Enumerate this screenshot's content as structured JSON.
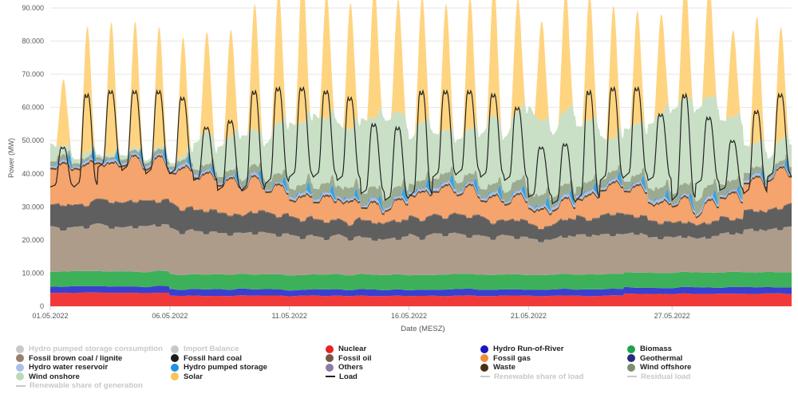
{
  "chart_data": {
    "type": "area",
    "title": "",
    "xlabel": "Date (MESZ)",
    "ylabel": "Power (MW)",
    "ylim": [
      0,
      90000
    ],
    "y_ticks": [
      "0",
      "10.000",
      "20.000",
      "30.000",
      "40.000",
      "50.000",
      "60.000",
      "70.000",
      "80.000",
      "90.000"
    ],
    "x_ticks": [
      "01.05.2022",
      "06.05.2022",
      "11.05.2022",
      "16.05.2022",
      "21.05.2022",
      "27.05.2022"
    ],
    "x_range_days": [
      1,
      32
    ],
    "stack_series": [
      {
        "name": "Nuclear",
        "color": "#f03a3a",
        "approx_range_MW": [
          2800,
          4000
        ]
      },
      {
        "name": "Hydro Run-of-River",
        "color": "#3b3fd0",
        "approx_range_MW": [
          1500,
          2200
        ]
      },
      {
        "name": "Biomass",
        "color": "#3cb15a",
        "approx_range_MW": [
          4400,
          4600
        ]
      },
      {
        "name": "Fossil brown coal / lignite",
        "color": "#ae9c8b",
        "approx_range_MW": [
          9000,
          14000
        ]
      },
      {
        "name": "Fossil hard coal",
        "color": "#5f5f5f",
        "approx_range_MW": [
          3000,
          7000
        ]
      },
      {
        "name": "Fossil oil",
        "color": "#8a6a5a",
        "approx_range_MW": [
          200,
          300
        ]
      },
      {
        "name": "Fossil gas",
        "color": "#f4a46c",
        "approx_range_MW": [
          2000,
          14000
        ]
      },
      {
        "name": "Waste",
        "color": "#6a4a2a",
        "approx_range_MW": [
          500,
          600
        ]
      },
      {
        "name": "Hydro water reservoir",
        "color": "#a9c1e8",
        "approx_range_MW": [
          200,
          1000
        ]
      },
      {
        "name": "Hydro pumped storage",
        "color": "#3aa2e0",
        "approx_range_MW": [
          0,
          3500
        ]
      },
      {
        "name": "Others",
        "color": "#8f7aa8",
        "approx_range_MW": [
          100,
          200
        ]
      },
      {
        "name": "Wind offshore",
        "color": "#9aab8f",
        "approx_range_MW": [
          500,
          4000
        ]
      },
      {
        "name": "Wind onshore",
        "color": "#c9dfc6",
        "approx_range_MW": [
          2000,
          30000
        ]
      },
      {
        "name": "Solar",
        "color": "#ffd480",
        "approx_range_MW": [
          0,
          38000
        ]
      }
    ],
    "line_series": [
      {
        "name": "Load",
        "color": "#222222",
        "daily_peak_MW": [
          48,
          64,
          65,
          65,
          65,
          63,
          54,
          56,
          65,
          66,
          66,
          65,
          63,
          55,
          54,
          65,
          65,
          65,
          64,
          60,
          48,
          49,
          65,
          66,
          66,
          58,
          64,
          57,
          50,
          59,
          64
        ],
        "night_min_MW": [
          36,
          36,
          42,
          41,
          40,
          40,
          38,
          35,
          35,
          37,
          39,
          39,
          38,
          34,
          32,
          33,
          39,
          40,
          39,
          38,
          33,
          31,
          32,
          38,
          39,
          38,
          32,
          37,
          35,
          34,
          39
        ]
      }
    ],
    "legend_placement": "bottom",
    "legend_entries": [
      {
        "name": "Hydro pumped storage consumption",
        "color": "#c8c8c8",
        "enabled": false,
        "marker": "dot"
      },
      {
        "name": "Import Balance",
        "color": "#c8c8c8",
        "enabled": false,
        "marker": "dot"
      },
      {
        "name": "Nuclear",
        "color": "#e8221f",
        "enabled": true,
        "marker": "dot"
      },
      {
        "name": "Hydro Run-of-River",
        "color": "#1a17c4",
        "enabled": true,
        "marker": "dot"
      },
      {
        "name": "Biomass",
        "color": "#1ea34a",
        "enabled": true,
        "marker": "dot"
      },
      {
        "name": "Fossil brown coal / lignite",
        "color": "#9b7e6e",
        "enabled": true,
        "marker": "dot"
      },
      {
        "name": "Fossil hard coal",
        "color": "#1c1c1c",
        "enabled": true,
        "marker": "dot"
      },
      {
        "name": "Fossil oil",
        "color": "#735a4a",
        "enabled": true,
        "marker": "dot"
      },
      {
        "name": "Fossil gas",
        "color": "#f08c3c",
        "enabled": true,
        "marker": "dot"
      },
      {
        "name": "Geothermal",
        "color": "#2a2a7a",
        "enabled": true,
        "marker": "dot"
      },
      {
        "name": "Hydro water reservoir",
        "color": "#a9c1e8",
        "enabled": true,
        "marker": "dot"
      },
      {
        "name": "Hydro pumped storage",
        "color": "#1f93e0",
        "enabled": true,
        "marker": "dot"
      },
      {
        "name": "Others",
        "color": "#8f7aa8",
        "enabled": true,
        "marker": "dot"
      },
      {
        "name": "Waste",
        "color": "#4a3010",
        "enabled": true,
        "marker": "dot"
      },
      {
        "name": "Wind offshore",
        "color": "#7d8f6e",
        "enabled": true,
        "marker": "dot"
      },
      {
        "name": "Wind onshore",
        "color": "#bcd9bc",
        "enabled": true,
        "marker": "dot"
      },
      {
        "name": "Solar",
        "color": "#fbc35a",
        "enabled": true,
        "marker": "dot"
      },
      {
        "name": "Load",
        "color": "#222222",
        "enabled": true,
        "marker": "line"
      },
      {
        "name": "Renewable share of load",
        "color": "#c8c8c8",
        "enabled": false,
        "marker": "line"
      },
      {
        "name": "Residual load",
        "color": "#c8c8c8",
        "enabled": false,
        "marker": "line"
      },
      {
        "name": "Renewable share of generation",
        "color": "#c8c8c8",
        "enabled": false,
        "marker": "line"
      }
    ]
  }
}
